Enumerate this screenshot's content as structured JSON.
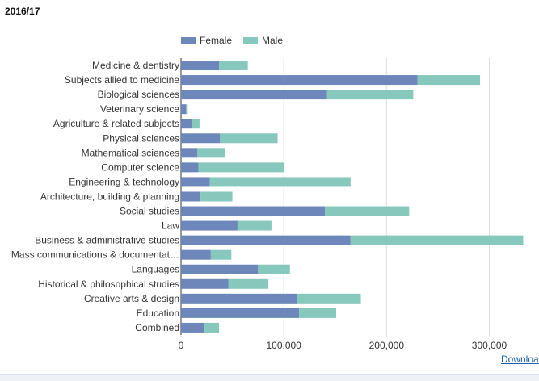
{
  "header": {
    "subtitle": "2016/17"
  },
  "download": {
    "label": "Downloa"
  },
  "chart_data": {
    "type": "bar",
    "orientation": "horizontal",
    "stacked": true,
    "categories": [
      "Medicine & dentistry",
      "Subjects allied to medicine",
      "Biological sciences",
      "Veterinary science",
      "Agriculture & related subjects",
      "Physical sciences",
      "Mathematical sciences",
      "Computer science",
      "Engineering & technology",
      "Architecture, building & planning",
      "Social studies",
      "Law",
      "Business & administrative studies",
      "Mass communications & documentat…",
      "Languages",
      "Historical & philosophical studies",
      "Creative arts & design",
      "Education",
      "Combined"
    ],
    "series": [
      {
        "name": "Female",
        "color": "#6e87ba",
        "values": [
          37000,
          230000,
          142000,
          5000,
          11000,
          38000,
          16000,
          17000,
          28000,
          19000,
          140000,
          55000,
          165000,
          29000,
          75000,
          46000,
          113000,
          115000,
          23000
        ]
      },
      {
        "name": "Male",
        "color": "#86c8bc",
        "values": [
          28000,
          61000,
          84000,
          1500,
          7000,
          56000,
          27000,
          83000,
          137000,
          31000,
          82000,
          33000,
          168000,
          20000,
          31000,
          39000,
          62000,
          36000,
          14000
        ]
      }
    ],
    "xlim": [
      0,
      335000
    ],
    "xticks": [
      0,
      100000,
      200000,
      300000
    ],
    "xtick_labels": [
      "0",
      "100,000",
      "200,000",
      "300,000"
    ],
    "grid": true,
    "legend_position": "top-left"
  }
}
